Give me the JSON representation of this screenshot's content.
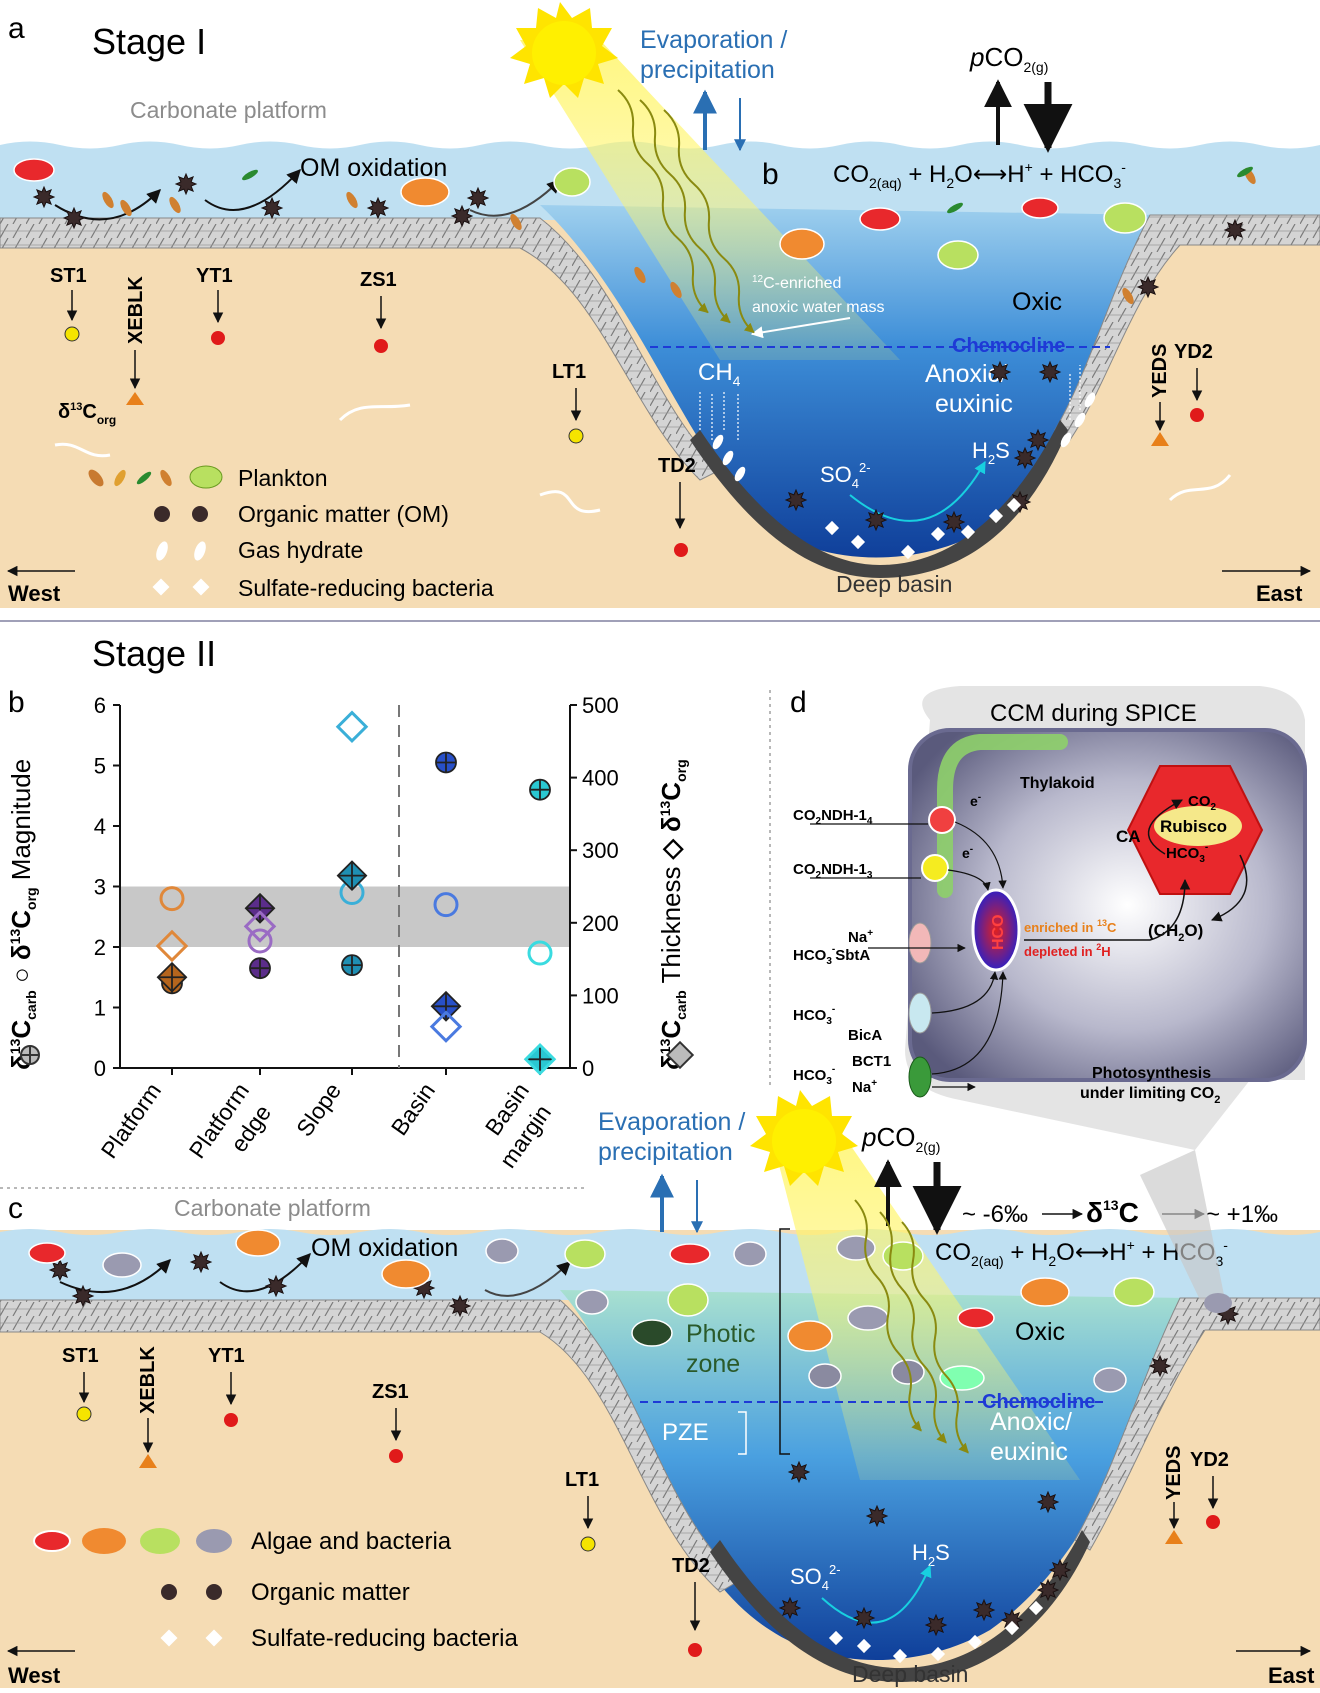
{
  "panel_a": {
    "letter": "a",
    "stage": "Stage I",
    "platform_label": "Carbonate platform",
    "evap_line1": "Evaporation /",
    "evap_line2": "precipitation",
    "pco2_p": "p",
    "pco2_main": "CO",
    "pco2_sub": "2(g)",
    "inset_b": "b",
    "equation": {
      "co2": "CO",
      "co2_sub": "2(aq)",
      "h2o": " + H",
      "h2o_sub": "2",
      "o": "O",
      "arrow": "⟷",
      "h": "H",
      "h_sup": "+",
      "hco3": " + HCO",
      "hco3_sub": "3",
      "hco3_sup": "-"
    },
    "om_oxidation": "OM oxidation",
    "anoxic_sup": "12",
    "anoxic_line1": "C-enriched",
    "anoxic_line2": "anoxic water mass",
    "oxic": "Oxic",
    "chemocline": "Chemocline",
    "anoxic_euxinic_1": "Anoxic/",
    "anoxic_euxinic_2": "euxinic",
    "ch4": "CH",
    "ch4_sub": "4",
    "h2s": "H",
    "h2s_sub": "2",
    "h2s_s": "S",
    "so4": "SO",
    "so4_sub": "4",
    "so4_sup": "2-",
    "deep_basin": "Deep basin",
    "west": "West",
    "east": "East",
    "d13c_label": "δ",
    "d13c_sup": "13",
    "d13c_c": "C",
    "d13c_sub": "org",
    "sites": [
      "ST1",
      "XEBLK",
      "YT1",
      "ZS1",
      "LT1",
      "TD2",
      "YEDS",
      "YD2"
    ],
    "legend": [
      "Plankton",
      "Organic matter (OM)",
      "Gas hydrate",
      "Sulfate-reducing bacteria"
    ]
  },
  "stage2": "Stage II",
  "chart_data": {
    "type": "scatter",
    "letter": "b",
    "categories": [
      "Platform",
      "Platform edge",
      "Slope",
      "Basin",
      "Basin margin"
    ],
    "category_lines": [
      [
        "Platform"
      ],
      [
        "Platform",
        "edge"
      ],
      [
        "Slope"
      ],
      [
        "Basin"
      ],
      [
        "Basin",
        "margin"
      ]
    ],
    "ylim_left": [
      0,
      6
    ],
    "ylim_right": [
      0,
      500
    ],
    "yticks_left": [
      "0",
      "1",
      "2",
      "3",
      "4",
      "5",
      "6"
    ],
    "yticks_right": [
      "0",
      "100",
      "200",
      "300",
      "400",
      "500"
    ],
    "ylabel_left": "δ13Ccarb O δ13Corg Magnitude",
    "ylabel_right": "δ13Ccarb δ13Corg Thickness",
    "shaded_band": [
      2,
      3
    ],
    "divider_after": "Slope",
    "series": [
      {
        "name": "δ13Ccarb magnitude",
        "marker": "circle-plus",
        "axis": "left",
        "points": [
          {
            "x": "Platform",
            "y": 1.4,
            "color": "#b5651d"
          },
          {
            "x": "Platform edge",
            "y": 1.65,
            "color": "#5b2d8a"
          },
          {
            "x": "Slope",
            "y": 1.7,
            "color": "#1f8fb3"
          },
          {
            "x": "Basin",
            "y": 5.05,
            "color": "#2850c8"
          },
          {
            "x": "Basin margin",
            "y": 4.6,
            "color": "#2ac8d2"
          }
        ]
      },
      {
        "name": "δ13Corg magnitude",
        "marker": "circle-open",
        "axis": "left",
        "points": [
          {
            "x": "Platform",
            "y": 2.8,
            "color": "#e0883a"
          },
          {
            "x": "Platform edge",
            "y": 2.1,
            "color": "#9a6bc4"
          },
          {
            "x": "Slope",
            "y": 2.9,
            "color": "#3aafd8"
          },
          {
            "x": "Basin",
            "y": 2.7,
            "color": "#4a7ae0"
          },
          {
            "x": "Basin margin",
            "y": 1.9,
            "color": "#3adbe0"
          }
        ]
      },
      {
        "name": "δ13Ccarb thickness",
        "marker": "diamond-plus",
        "axis": "right",
        "points": [
          {
            "x": "Platform",
            "y": 125,
            "color": "#b5651d"
          },
          {
            "x": "Platform edge",
            "y": 220,
            "color": "#5b2d8a"
          },
          {
            "x": "Slope",
            "y": 265,
            "color": "#1f8fb3"
          },
          {
            "x": "Basin",
            "y": 85,
            "color": "#2850c8"
          },
          {
            "x": "Basin margin",
            "y": 12,
            "color": "#2ac8d2"
          }
        ]
      },
      {
        "name": "δ13Corg thickness",
        "marker": "diamond-open",
        "axis": "right",
        "points": [
          {
            "x": "Platform",
            "y": 168,
            "color": "#e0883a"
          },
          {
            "x": "Platform edge",
            "y": 195,
            "color": "#9a6bc4"
          },
          {
            "x": "Slope",
            "y": 470,
            "color": "#3aafd8"
          },
          {
            "x": "Basin",
            "y": 57,
            "color": "#4a7ae0"
          },
          {
            "x": "Basin margin",
            "y": 12,
            "color": "#3adbe0"
          }
        ]
      }
    ]
  },
  "panel_d": {
    "letter": "d",
    "title": "CCM during SPICE",
    "thylakoid": "Thylakoid",
    "e": "e",
    "e_sup": "-",
    "ca": "CA",
    "rubisco": "Rubisco",
    "co2_in": "CO",
    "co2_in_sub": "2",
    "hco3_in": "HCO",
    "hco3_in_sub": "3",
    "hco3_in_sup": "-",
    "ch2o": "(CH",
    "ch2o_sub": "2",
    "ch2o_end": "O)",
    "hco3_pool": "HCO",
    "enriched": "enriched in ",
    "enriched_sup": "13",
    "enriched_end": "C",
    "depleted": "depleted in ",
    "depleted_sup": "2",
    "depleted_end": "H",
    "ndh14": "NDH-1",
    "ndh14_sub": "4",
    "ndh13": "NDH-1",
    "ndh13_sub": "3",
    "na": "Na",
    "na_sup": "+",
    "sbta": "SbtA",
    "bica": "BicA",
    "bct1": "BCT1",
    "photo_line1": "Photosynthesis",
    "photo_line2": "under limiting CO",
    "photo_sub": "2"
  },
  "panel_c": {
    "letter": "c",
    "platform_label": "Carbonate platform",
    "evap_line1": "Evaporation /",
    "evap_line2": "precipitation",
    "om_oxidation": "OM oxidation",
    "d13c_left": "~ -6‰",
    "d13c_mid": "δ",
    "d13c_mid_sup": "13",
    "d13c_mid_c": "C",
    "d13c_right": "~ +1‰",
    "oxic": "Oxic",
    "photic_1": "Photic",
    "photic_2": "zone",
    "pze": "PZE",
    "chemocline": "Chemocline",
    "anoxic_euxinic_1": "Anoxic/",
    "anoxic_euxinic_2": "euxinic",
    "deep_basin": "Deep basin",
    "west": "West",
    "east": "East",
    "sites": [
      "ST1",
      "XEBLK",
      "YT1",
      "ZS1",
      "LT1",
      "TD2",
      "YEDS",
      "YD2"
    ],
    "legend": [
      "Algae and bacteria",
      "Organic matter",
      "Sulfate-reducing bacteria"
    ]
  },
  "colors": {
    "sand": "#f5dcb4",
    "water": "#bfe0f2",
    "deep_water": "#1e6fc4",
    "shelf": "#cfcfcf",
    "sun": "#ffe400",
    "label_blue": "#2a6fb3",
    "chemocline": "#1e3ad6",
    "om": "#3a2a2a"
  }
}
